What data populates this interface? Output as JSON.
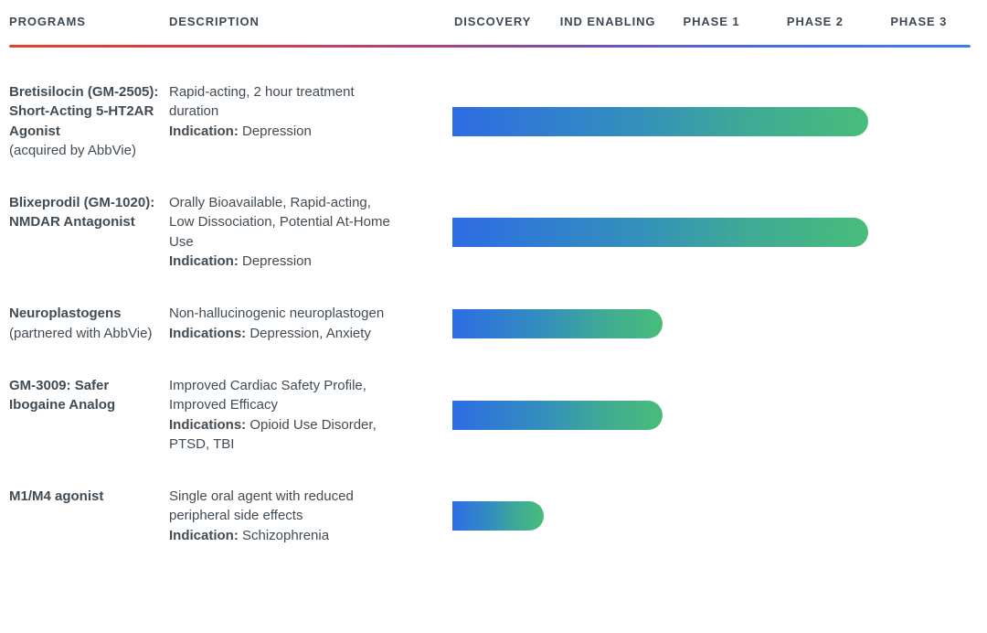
{
  "header": {
    "programs": "PROGRAMS",
    "description": "DESCRIPTION",
    "stages": [
      "DISCOVERY",
      "IND ENABLING",
      "PHASE 1",
      "PHASE 2",
      "PHASE 3"
    ]
  },
  "rows": [
    {
      "program": "Bretisilocin (GM-2505): Short-Acting 5-HT2AR Agonist",
      "program_note": "(acquired by AbbVie)",
      "description": "Rapid-acting, 2 hour treatment duration",
      "indication_label": "Indication:",
      "indication_value": "Depression"
    },
    {
      "program": "Blixeprodil (GM-1020): NMDAR Antagonist",
      "program_note": "",
      "description": "Orally Bioavailable, Rapid-acting, Low Dissociation, Potential At-Home Use",
      "indication_label": "Indication:",
      "indication_value": "Depression"
    },
    {
      "program": "Neuroplastogens",
      "program_note": "(partnered with AbbVie)",
      "description": "Non-hallucinogenic neuroplastogen",
      "indication_label": "Indications:",
      "indication_value": "Depression, Anxiety"
    },
    {
      "program": "GM-3009: Safer Ibogaine Analog",
      "program_note": "",
      "description": "Improved Cardiac Safety Profile, Improved Efficacy",
      "indication_label": "Indications:",
      "indication_value": "Opioid Use Disorder, PTSD, TBI"
    },
    {
      "program": "M1/M4 agonist",
      "program_note": "",
      "description": "Single oral agent with reduced peripheral side effects",
      "indication_label": "Indication:",
      "indication_value": "Schizophrenia"
    }
  ],
  "chart_data": {
    "type": "bar",
    "stages": [
      "Discovery",
      "IND Enabling",
      "Phase 1",
      "Phase 2",
      "Phase 3"
    ],
    "bar_color_start": "#2d6ce4",
    "bar_color_end": "#48bd7a",
    "divider_color_start": "#e2432e",
    "divider_color_end": "#3d7df2",
    "series": [
      {
        "name": "Bretisilocin (GM-2505): Short-Acting 5-HT2AR Agonist (acquired by AbbVie)",
        "stage_reached": "Phase 2",
        "progress_pct": 80.2
      },
      {
        "name": "Blixeprodil (GM-1020): NMDAR Antagonist",
        "stage_reached": "Phase 2",
        "progress_pct": 80.2
      },
      {
        "name": "Neuroplastogens (partnered with AbbVie)",
        "stage_reached": "IND Enabling",
        "progress_pct": 40.5
      },
      {
        "name": "GM-3009: Safer Ibogaine Analog",
        "stage_reached": "IND Enabling",
        "progress_pct": 40.5
      },
      {
        "name": "M1/M4 agonist",
        "stage_reached": "Discovery",
        "progress_pct": 17.6
      }
    ]
  }
}
